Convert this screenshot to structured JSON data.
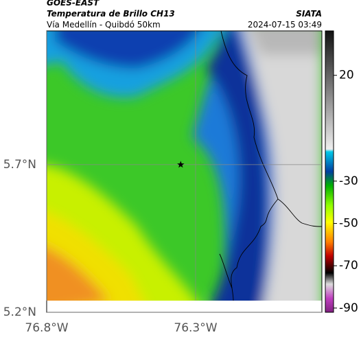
{
  "header": {
    "source": "GOES-EAST",
    "product": "Temperatura de Brillo CH13",
    "agency": "SIATA",
    "route": "Vía Medellín - Quibdó 50km",
    "timestamp": "2024-07-15 03:49"
  },
  "map": {
    "xlim": [
      -76.8,
      -75.876
    ],
    "ylim": [
      5.2,
      6.153
    ],
    "xticks": [
      {
        "value": -76.8,
        "label": "76.8°W"
      },
      {
        "value": -76.3,
        "label": "76.3°W"
      }
    ],
    "yticks": [
      {
        "value": 5.7,
        "label": "5.7°N"
      },
      {
        "value": 5.2,
        "label": "5.2°N"
      }
    ],
    "marker": {
      "lon": -76.35,
      "lat": 5.7
    }
  },
  "colorbar": {
    "range": [
      -92,
      41
    ],
    "ticks": [
      20,
      -30,
      -50,
      -70,
      -90
    ]
  }
}
